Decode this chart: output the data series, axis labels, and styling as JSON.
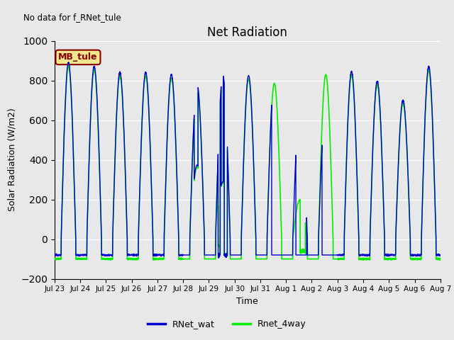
{
  "title": "Net Radiation",
  "xlabel": "Time",
  "ylabel": "Solar Radiation (W/m2)",
  "ylim": [
    -200,
    1000
  ],
  "yticks": [
    -200,
    0,
    200,
    400,
    600,
    800,
    1000
  ],
  "no_data_text": "No data for f_RNet_tule",
  "annotation_text": "MB_tule",
  "annotation_facecolor": "#f0e68c",
  "annotation_edgecolor": "#8b0000",
  "line1_color": "#0000cd",
  "line2_color": "#00ee00",
  "line1_label": "RNet_wat",
  "line2_label": "Rnet_4way",
  "plot_bg_color": "#e8e8e8",
  "fig_bg_color": "#e8e8e8",
  "grid_color": "#ffffff",
  "n_days": 15,
  "samples_per_day": 288,
  "xtick_labels": [
    "Jul 23",
    "Jul 24",
    "Jul 25",
    "Jul 26",
    "Jul 27",
    "Jul 28",
    "Jul 29",
    "Jul 30",
    "Jul 31",
    "Aug 1",
    "Aug 2",
    "Aug 3",
    "Aug 4",
    "Aug 5",
    "Aug 6",
    "Aug 7"
  ]
}
